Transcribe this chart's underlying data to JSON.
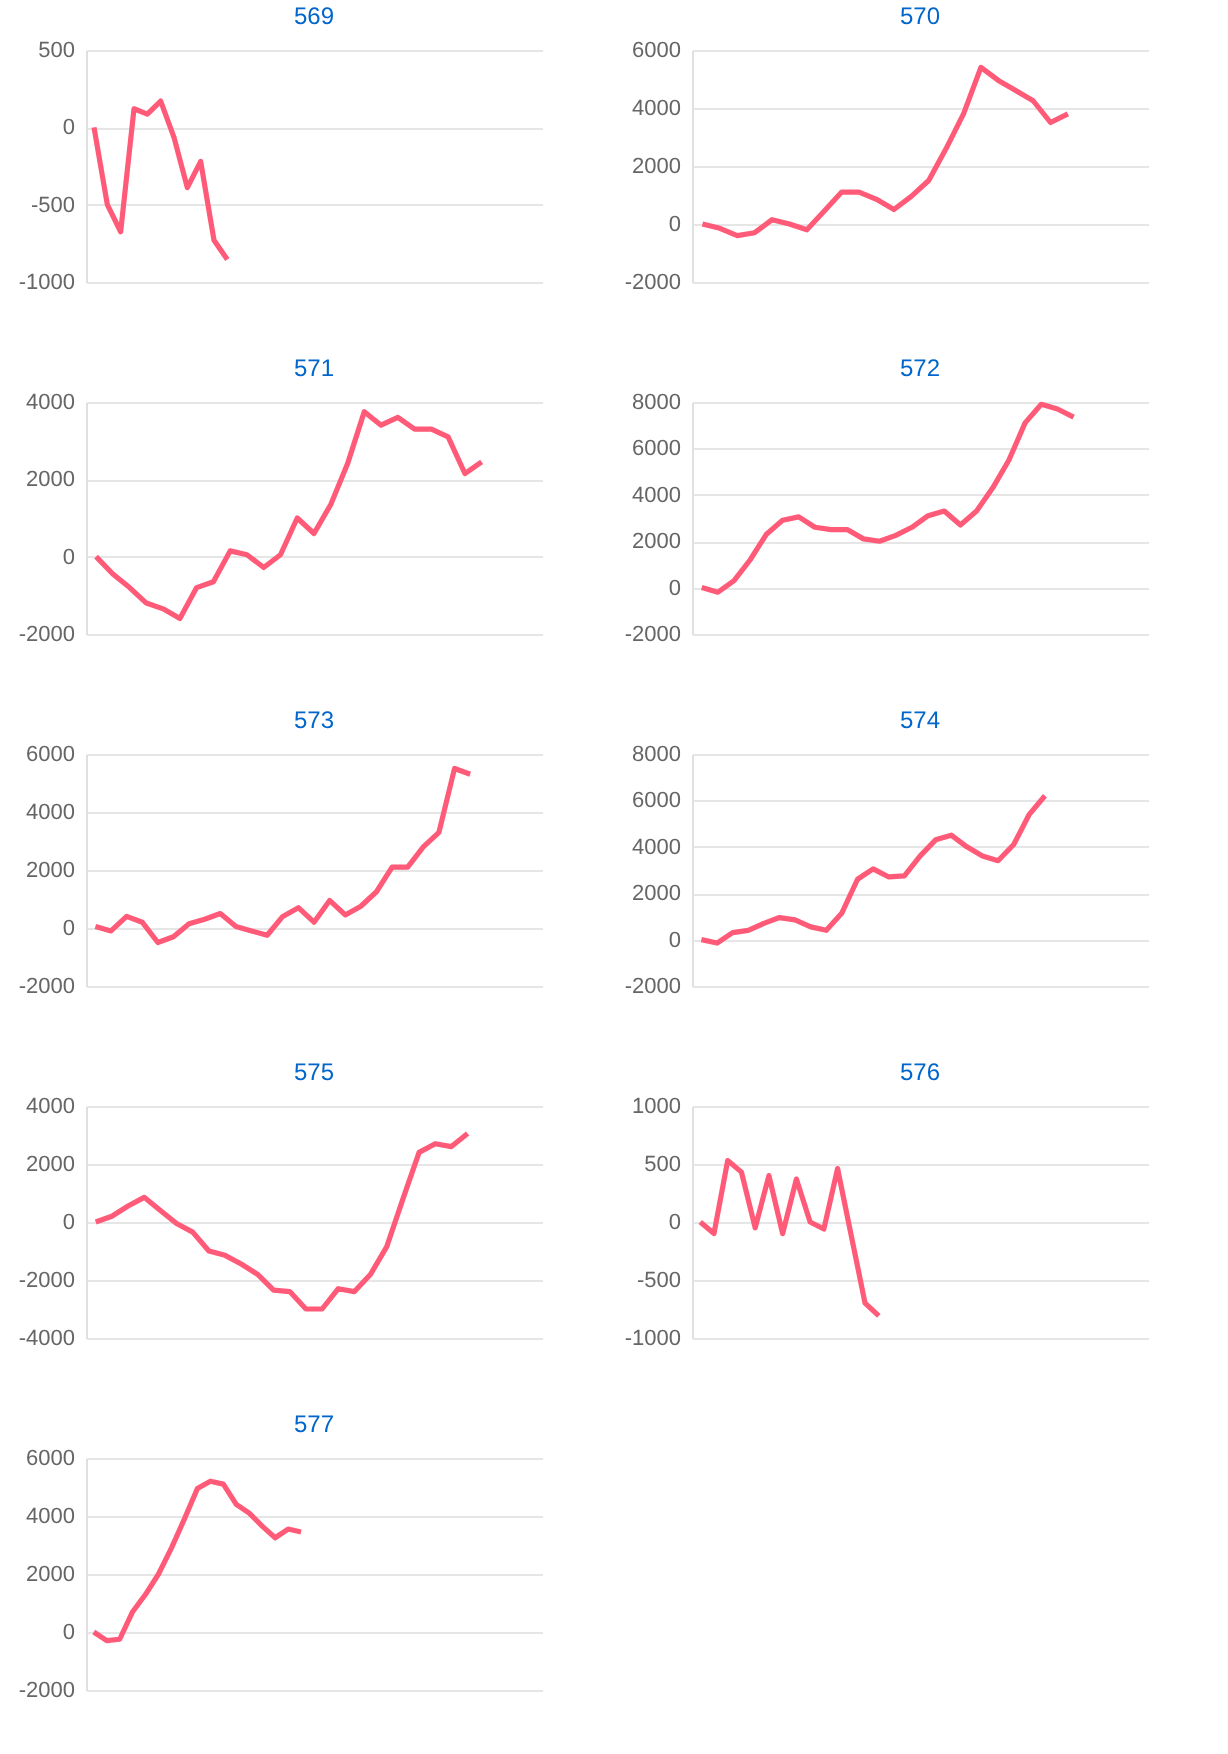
{
  "chart_data": [
    {
      "type": "line",
      "title": "569",
      "color": "#ff5a78",
      "grid": "y",
      "tick_labels": "y",
      "ylim": [
        -1000,
        500
      ],
      "yticks": [
        -1000,
        -500,
        0,
        500
      ],
      "categories": [
        null,
        null,
        null,
        null,
        null,
        null,
        null,
        null,
        null,
        null,
        null,
        null,
        null,
        null,
        null,
        null,
        null,
        null,
        null,
        null,
        null,
        null,
        null,
        null,
        null,
        null,
        null,
        null,
        null,
        null,
        null,
        null,
        null,
        null
      ],
      "values": [
        0,
        -500,
        -675,
        120,
        85,
        170,
        -65,
        -390,
        -220,
        -730,
        -855,
        null,
        null,
        null,
        null,
        null,
        null,
        null,
        null,
        null,
        null,
        null,
        null,
        null,
        null,
        null,
        null,
        null,
        null,
        null,
        null,
        null,
        null,
        null
      ]
    },
    {
      "type": "line",
      "title": "570",
      "color": "#ff5a78",
      "grid": "y",
      "tick_labels": "y",
      "ylim": [
        -2000,
        6000
      ],
      "yticks": [
        -2000,
        0,
        2000,
        4000,
        6000
      ],
      "categories": [
        null,
        null,
        null,
        null,
        null,
        null,
        null,
        null,
        null,
        null,
        null,
        null,
        null,
        null,
        null,
        null,
        null,
        null,
        null,
        null,
        null,
        null,
        null,
        null,
        null,
        null
      ],
      "values": [
        0,
        -150,
        -400,
        -300,
        150,
        0,
        -200,
        450,
        1100,
        1100,
        850,
        500,
        950,
        1500,
        2600,
        3800,
        5400,
        4950,
        4600,
        4250,
        3500,
        3800,
        null,
        null,
        null,
        null
      ]
    },
    {
      "type": "line",
      "title": "571",
      "color": "#ff5a78",
      "grid": "y",
      "tick_labels": "y",
      "ylim": [
        -2000,
        4000
      ],
      "yticks": [
        -2000,
        0,
        2000,
        4000
      ],
      "categories": [
        null,
        null,
        null,
        null,
        null,
        null,
        null,
        null,
        null,
        null,
        null,
        null,
        null,
        null,
        null,
        null,
        null,
        null,
        null,
        null,
        null,
        null,
        null,
        null,
        null,
        null,
        null
      ],
      "values": [
        0,
        -450,
        -800,
        -1200,
        -1350,
        -1600,
        -800,
        -650,
        150,
        50,
        -280,
        50,
        1000,
        600,
        1350,
        2400,
        3750,
        3400,
        3600,
        3300,
        3300,
        3100,
        2150,
        2450,
        null,
        null,
        null
      ]
    },
    {
      "type": "line",
      "title": "572",
      "color": "#ff5a78",
      "grid": "y",
      "tick_labels": "y",
      "ylim": [
        -2000,
        8000
      ],
      "yticks": [
        -2000,
        0,
        2000,
        4000,
        6000,
        8000
      ],
      "categories": [
        null,
        null,
        null,
        null,
        null,
        null,
        null,
        null,
        null,
        null,
        null,
        null,
        null,
        null,
        null,
        null,
        null,
        null,
        null,
        null,
        null,
        null,
        null,
        null,
        null,
        null,
        null,
        null
      ],
      "values": [
        0,
        -200,
        300,
        1200,
        2300,
        2900,
        3050,
        2600,
        2500,
        2500,
        2100,
        2000,
        2250,
        2600,
        3100,
        3300,
        2700,
        3300,
        4300,
        5500,
        7100,
        7900,
        7700,
        7350,
        null,
        null,
        null,
        null
      ]
    },
    {
      "type": "line",
      "title": "573",
      "color": "#ff5a78",
      "grid": "y",
      "tick_labels": "y",
      "ylim": [
        -2000,
        6000
      ],
      "yticks": [
        -2000,
        0,
        2000,
        4000,
        6000
      ],
      "categories": [
        null,
        null,
        null,
        null,
        null,
        null,
        null,
        null,
        null,
        null,
        null,
        null,
        null,
        null,
        null,
        null,
        null,
        null,
        null,
        null,
        null,
        null,
        null,
        null,
        null,
        null,
        null,
        null,
        null
      ],
      "values": [
        50,
        -100,
        400,
        200,
        -500,
        -300,
        150,
        300,
        500,
        50,
        -100,
        -250,
        400,
        700,
        200,
        950,
        450,
        750,
        1250,
        2100,
        2100,
        2800,
        3300,
        5500,
        5300,
        null,
        null,
        null,
        null
      ]
    },
    {
      "type": "line",
      "title": "574",
      "color": "#ff5a78",
      "grid": "y",
      "tick_labels": "y",
      "ylim": [
        -2000,
        8000
      ],
      "yticks": [
        -2000,
        0,
        2000,
        4000,
        6000,
        8000
      ],
      "categories": [
        null,
        null,
        null,
        null,
        null,
        null,
        null,
        null,
        null,
        null,
        null,
        null,
        null,
        null,
        null,
        null,
        null,
        null,
        null,
        null,
        null,
        null,
        null,
        null,
        null,
        null,
        null,
        null,
        null
      ],
      "values": [
        0,
        -150,
        300,
        400,
        700,
        950,
        850,
        550,
        400,
        1150,
        2600,
        3050,
        2700,
        2750,
        3600,
        4300,
        4500,
        4000,
        3600,
        3400,
        4100,
        5400,
        6200,
        null,
        null,
        null,
        null,
        null,
        null
      ]
    },
    {
      "type": "line",
      "title": "575",
      "color": "#ff5a78",
      "grid": "y",
      "tick_labels": "y",
      "ylim": [
        -4000,
        4000
      ],
      "yticks": [
        -4000,
        -2000,
        0,
        2000,
        4000
      ],
      "categories": [
        null,
        null,
        null,
        null,
        null,
        null,
        null,
        null,
        null,
        null,
        null,
        null,
        null,
        null,
        null,
        null,
        null,
        null,
        null,
        null,
        null,
        null,
        null,
        null,
        null,
        null,
        null,
        null
      ],
      "values": [
        0,
        200,
        550,
        850,
        400,
        -50,
        -350,
        -1000,
        -1150,
        -1450,
        -1800,
        -2350,
        -2400,
        -3000,
        -3000,
        -2300,
        -2400,
        -1800,
        -850,
        800,
        2400,
        2700,
        2600,
        3050,
        null,
        null,
        null,
        null
      ]
    },
    {
      "type": "line",
      "title": "576",
      "color": "#ff5a78",
      "grid": "y",
      "tick_labels": "y",
      "ylim": [
        -1000,
        1000
      ],
      "yticks": [
        -1000,
        -500,
        0,
        500,
        1000
      ],
      "categories": [
        null,
        null,
        null,
        null,
        null,
        null,
        null,
        null,
        null,
        null,
        null,
        null,
        null,
        null,
        null,
        null,
        null,
        null,
        null,
        null,
        null,
        null,
        null,
        null,
        null,
        null,
        null,
        null,
        null,
        null,
        null,
        null,
        null
      ],
      "values": [
        0,
        -100,
        530,
        430,
        -50,
        400,
        -100,
        370,
        0,
        -60,
        460,
        -120,
        -700,
        -810,
        null,
        null,
        null,
        null,
        null,
        null,
        null,
        null,
        null,
        null,
        null,
        null,
        null,
        null,
        null,
        null,
        null,
        null,
        null
      ]
    },
    {
      "type": "line",
      "title": "577",
      "color": "#ff5a78",
      "grid": "y",
      "tick_labels": "y",
      "ylim": [
        -2000,
        6000
      ],
      "yticks": [
        -2000,
        0,
        2000,
        4000,
        6000
      ],
      "categories": [
        null,
        null,
        null,
        null,
        null,
        null,
        null,
        null,
        null,
        null,
        null,
        null,
        null,
        null,
        null,
        null,
        null,
        null,
        null,
        null,
        null,
        null,
        null,
        null,
        null,
        null,
        null,
        null,
        null,
        null,
        null,
        null,
        null,
        null,
        null
      ],
      "values": [
        0,
        -300,
        -250,
        700,
        1300,
        2000,
        2900,
        3900,
        4950,
        5200,
        5100,
        4400,
        4100,
        3650,
        3250,
        3550,
        3450,
        null,
        null,
        null,
        null,
        null,
        null,
        null,
        null,
        null,
        null,
        null,
        null,
        null,
        null,
        null,
        null,
        null,
        null
      ]
    }
  ]
}
